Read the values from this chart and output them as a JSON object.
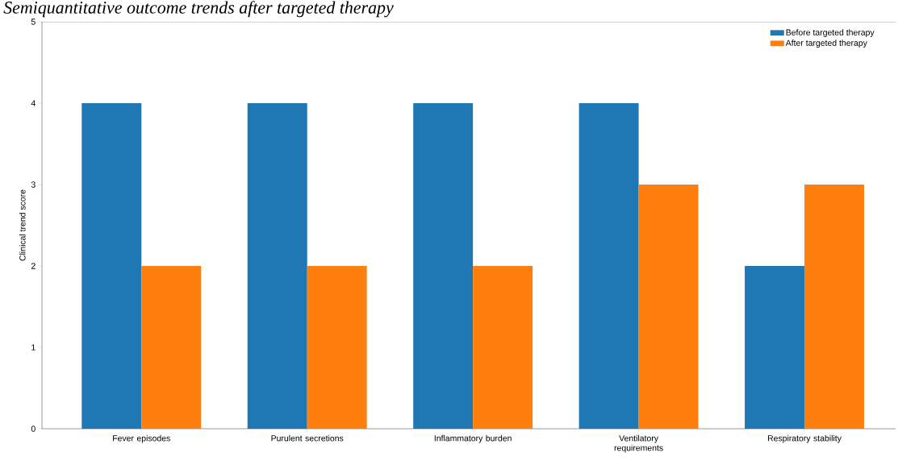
{
  "chart_data": {
    "type": "bar",
    "title": "Semiquantitative outcome trends after targeted therapy",
    "ylabel": "Clinical trend score",
    "categories": [
      "Fever episodes",
      "Purulent secretions",
      "Inflammatory burden",
      "Ventilatory requirements",
      "Respiratory stability"
    ],
    "series": [
      {
        "name": "Before targeted therapy",
        "color": "#1f77b4",
        "values": [
          4,
          4,
          4,
          4,
          2
        ]
      },
      {
        "name": "After targeted therapy",
        "color": "#ff7f0e",
        "values": [
          2,
          2,
          2,
          3,
          3
        ]
      }
    ],
    "ylim": [
      0,
      5
    ],
    "yticks": [
      0,
      1,
      2,
      3,
      4,
      5
    ],
    "grid": false,
    "legend": "top right"
  }
}
